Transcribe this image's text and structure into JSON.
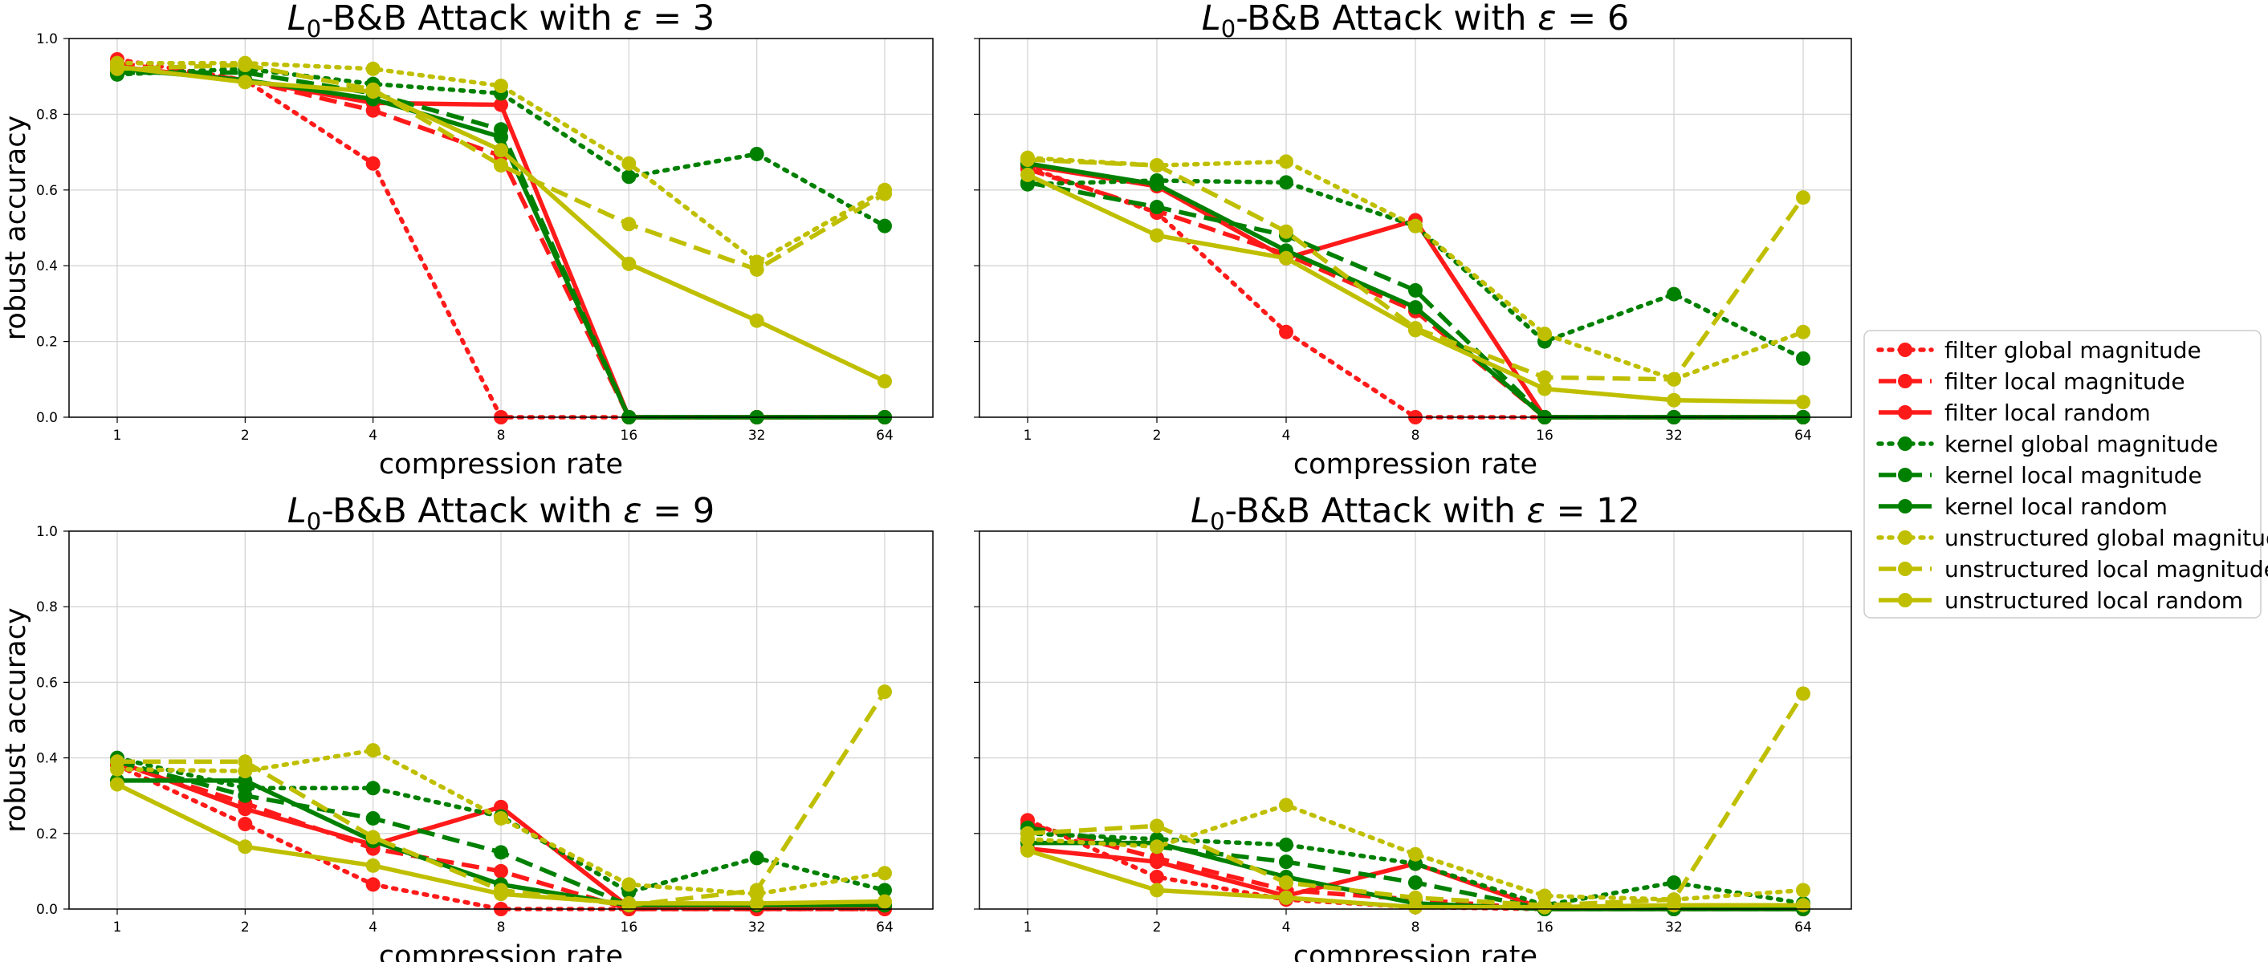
{
  "chart_data": {
    "type": "line",
    "xscale": "log2",
    "x": [
      1,
      2,
      4,
      8,
      16,
      32,
      64
    ],
    "x_tick_labels": [
      "1",
      "2",
      "4",
      "8",
      "16",
      "32",
      "64"
    ],
    "y_ticks": [
      0.0,
      0.2,
      0.4,
      0.6,
      0.8,
      1.0
    ],
    "y_tick_labels": [
      "0.0",
      "0.2",
      "0.4",
      "0.6",
      "0.8",
      "1.0"
    ],
    "ylim": [
      0,
      1
    ],
    "grid": true,
    "legend_position": "right",
    "colors": {
      "filter": "#ff1a1a",
      "kernel": "#008000",
      "unstructured": "#bfbf00"
    },
    "legend": [
      {
        "label": "filter global magnitude",
        "color": "#ff1a1a",
        "style": "dotted"
      },
      {
        "label": "filter local magnitude",
        "color": "#ff1a1a",
        "style": "dashed"
      },
      {
        "label": "filter local random",
        "color": "#ff1a1a",
        "style": "solid"
      },
      {
        "label": "kernel global magnitude",
        "color": "#008000",
        "style": "dotted"
      },
      {
        "label": "kernel local magnitude",
        "color": "#008000",
        "style": "dashed"
      },
      {
        "label": "kernel local random",
        "color": "#008000",
        "style": "solid"
      },
      {
        "label": "unstructured global magnitude",
        "color": "#bfbf00",
        "style": "dotted"
      },
      {
        "label": "unstructured local magnitude",
        "color": "#bfbf00",
        "style": "dashed"
      },
      {
        "label": "unstructured local random",
        "color": "#bfbf00",
        "style": "solid"
      }
    ],
    "panels": [
      {
        "title_prefix": "L",
        "title_sub": "0",
        "title_rest": "-B&B Attack with ",
        "title_eps": "ε",
        "title_eq": " = ",
        "title_val": "3",
        "xlabel": "compression rate",
        "ylabel": "robust accuracy",
        "series": [
          {
            "name": "filter global magnitude",
            "values": [
              0.945,
              0.89,
              0.67,
              0.0,
              0.0,
              0.0,
              0.0
            ]
          },
          {
            "name": "filter local magnitude",
            "values": [
              0.935,
              0.89,
              0.81,
              0.69,
              0.0,
              0.0,
              0.0
            ]
          },
          {
            "name": "filter local random",
            "values": [
              0.925,
              0.89,
              0.83,
              0.825,
              0.0,
              0.0,
              0.0
            ]
          },
          {
            "name": "kernel global magnitude",
            "values": [
              0.905,
              0.92,
              0.88,
              0.855,
              0.635,
              0.695,
              0.505
            ]
          },
          {
            "name": "kernel local magnitude",
            "values": [
              0.91,
              0.91,
              0.855,
              0.76,
              0.0,
              0.0,
              0.0
            ]
          },
          {
            "name": "kernel local random",
            "values": [
              0.92,
              0.89,
              0.84,
              0.74,
              0.0,
              0.0,
              0.0
            ]
          },
          {
            "name": "unstructured global magnitude",
            "values": [
              0.935,
              0.935,
              0.92,
              0.875,
              0.67,
              0.41,
              0.6
            ]
          },
          {
            "name": "unstructured local magnitude",
            "values": [
              0.92,
              0.93,
              0.865,
              0.665,
              0.51,
              0.39,
              0.59
            ]
          },
          {
            "name": "unstructured local random",
            "values": [
              0.925,
              0.885,
              0.86,
              0.705,
              0.405,
              0.255,
              0.095
            ]
          }
        ]
      },
      {
        "title_prefix": "L",
        "title_sub": "0",
        "title_rest": "-B&B Attack with ",
        "title_eps": "ε",
        "title_eq": " = ",
        "title_val": "6",
        "xlabel": "compression rate",
        "ylabel": "",
        "series": [
          {
            "name": "filter global magnitude",
            "values": [
              0.66,
              0.54,
              0.225,
              0.0,
              0.0,
              0.0,
              0.0
            ]
          },
          {
            "name": "filter local magnitude",
            "values": [
              0.655,
              0.545,
              0.43,
              0.28,
              0.0,
              0.0,
              0.0
            ]
          },
          {
            "name": "filter local random",
            "values": [
              0.665,
              0.61,
              0.42,
              0.52,
              0.0,
              0.0,
              0.0
            ]
          },
          {
            "name": "kernel global magnitude",
            "values": [
              0.615,
              0.625,
              0.62,
              0.505,
              0.2,
              0.325,
              0.155
            ]
          },
          {
            "name": "kernel local magnitude",
            "values": [
              0.62,
              0.555,
              0.48,
              0.335,
              0.0,
              0.0,
              0.0
            ]
          },
          {
            "name": "kernel local random",
            "values": [
              0.67,
              0.615,
              0.44,
              0.29,
              0.0,
              0.0,
              0.0
            ]
          },
          {
            "name": "unstructured global magnitude",
            "values": [
              0.685,
              0.665,
              0.675,
              0.505,
              0.22,
              0.1,
              0.225
            ]
          },
          {
            "name": "unstructured local magnitude",
            "values": [
              0.68,
              0.665,
              0.49,
              0.235,
              0.105,
              0.1,
              0.58
            ]
          },
          {
            "name": "unstructured local random",
            "values": [
              0.64,
              0.48,
              0.42,
              0.23,
              0.075,
              0.045,
              0.04
            ]
          }
        ]
      },
      {
        "title_prefix": "L",
        "title_sub": "0",
        "title_rest": "-B&B Attack with ",
        "title_eps": "ε",
        "title_eq": " = ",
        "title_val": "9",
        "xlabel": "compression rate",
        "ylabel": "robust accuracy",
        "series": [
          {
            "name": "filter global magnitude",
            "values": [
              0.38,
              0.225,
              0.065,
              0.0,
              0.0,
              0.0,
              0.0
            ]
          },
          {
            "name": "filter local magnitude",
            "values": [
              0.385,
              0.28,
              0.16,
              0.1,
              0.0,
              0.0,
              0.0
            ]
          },
          {
            "name": "filter local random",
            "values": [
              0.39,
              0.265,
              0.17,
              0.27,
              0.005,
              0.005,
              0.005
            ]
          },
          {
            "name": "kernel global magnitude",
            "values": [
              0.4,
              0.32,
              0.32,
              0.245,
              0.045,
              0.135,
              0.05
            ]
          },
          {
            "name": "kernel local magnitude",
            "values": [
              0.39,
              0.3,
              0.24,
              0.15,
              0.01,
              0.01,
              0.01
            ]
          },
          {
            "name": "kernel local random",
            "values": [
              0.34,
              0.34,
              0.18,
              0.065,
              0.01,
              0.01,
              0.01
            ]
          },
          {
            "name": "unstructured global magnitude",
            "values": [
              0.37,
              0.365,
              0.42,
              0.24,
              0.065,
              0.04,
              0.095
            ]
          },
          {
            "name": "unstructured local magnitude",
            "values": [
              0.39,
              0.39,
              0.19,
              0.05,
              0.01,
              0.05,
              0.575
            ]
          },
          {
            "name": "unstructured local random",
            "values": [
              0.33,
              0.165,
              0.115,
              0.04,
              0.015,
              0.015,
              0.02
            ]
          }
        ]
      },
      {
        "title_prefix": "L",
        "title_sub": "0",
        "title_rest": "-B&B Attack with ",
        "title_eps": "ε",
        "title_eq": " = ",
        "title_val": "12",
        "xlabel": "compression rate",
        "ylabel": "",
        "series": [
          {
            "name": "filter global magnitude",
            "values": [
              0.235,
              0.085,
              0.025,
              0.005,
              0.0,
              0.0,
              0.0
            ]
          },
          {
            "name": "filter local magnitude",
            "values": [
              0.225,
              0.135,
              0.05,
              0.025,
              0.0,
              0.0,
              0.0
            ]
          },
          {
            "name": "filter local random",
            "values": [
              0.16,
              0.125,
              0.035,
              0.12,
              0.0,
              0.0,
              0.0
            ]
          },
          {
            "name": "kernel global magnitude",
            "values": [
              0.2,
              0.185,
              0.17,
              0.12,
              0.01,
              0.07,
              0.015
            ]
          },
          {
            "name": "kernel local magnitude",
            "values": [
              0.215,
              0.165,
              0.125,
              0.07,
              0.0,
              0.0,
              0.0
            ]
          },
          {
            "name": "kernel local random",
            "values": [
              0.175,
              0.175,
              0.085,
              0.015,
              0.0,
              0.0,
              0.0
            ]
          },
          {
            "name": "unstructured global magnitude",
            "values": [
              0.185,
              0.165,
              0.275,
              0.145,
              0.035,
              0.025,
              0.05
            ]
          },
          {
            "name": "unstructured local magnitude",
            "values": [
              0.2,
              0.22,
              0.07,
              0.03,
              0.01,
              0.025,
              0.57
            ]
          },
          {
            "name": "unstructured local random",
            "values": [
              0.155,
              0.05,
              0.03,
              0.005,
              0.005,
              0.01,
              0.01
            ]
          }
        ]
      }
    ]
  }
}
